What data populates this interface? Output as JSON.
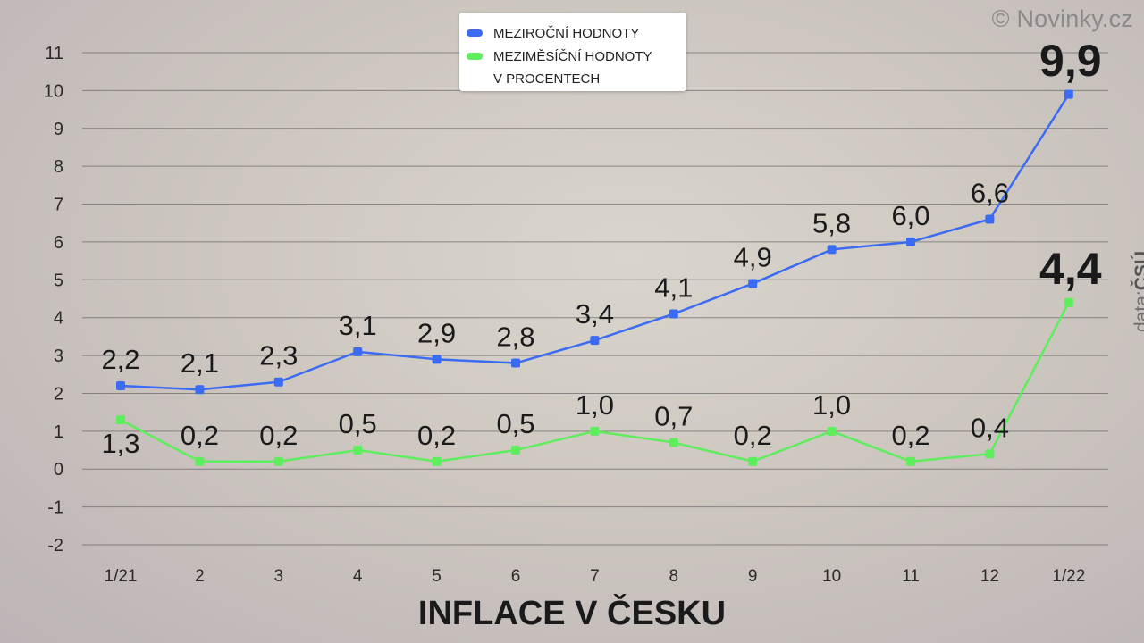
{
  "brand": "© Novinky.cz",
  "source": {
    "prefix": "data:",
    "name": "ČSÚ"
  },
  "title": "INFLACE V ČESKU",
  "legend": {
    "line1": "MEZIROČNÍ HODNOTY",
    "line2": "MEZIMĚSÍČNÍ HODNOTY",
    "line3": "V PROCENTECH"
  },
  "colors": {
    "yoy": "#3a6bf2",
    "mom": "#5ded5d",
    "grid": "#555555",
    "text": "#1a1a1a"
  },
  "chart_data": {
    "type": "line",
    "categories": [
      "1/21",
      "2",
      "3",
      "4",
      "5",
      "6",
      "7",
      "8",
      "9",
      "10",
      "11",
      "12",
      "1/22"
    ],
    "ylim": [
      -2,
      11
    ],
    "yticks": [
      -2,
      -1,
      0,
      1,
      2,
      3,
      4,
      5,
      6,
      7,
      8,
      9,
      10,
      11
    ],
    "grid": true,
    "legend_position": "top-center",
    "series": [
      {
        "name": "MEZIROČNÍ HODNOTY",
        "values": [
          2.2,
          2.1,
          2.3,
          3.1,
          2.9,
          2.8,
          3.4,
          4.1,
          4.9,
          5.8,
          6.0,
          6.6,
          9.9
        ],
        "labels": [
          "2,2",
          "2,1",
          "2,3",
          "3,1",
          "2,9",
          "2,8",
          "3,4",
          "4,1",
          "4,9",
          "5,8",
          "6,0",
          "6,6",
          "9,9"
        ]
      },
      {
        "name": "MEZIMĚSÍČNÍ HODNOTY",
        "values": [
          1.3,
          0.2,
          0.2,
          0.5,
          0.2,
          0.5,
          1.0,
          0.7,
          0.2,
          1.0,
          0.2,
          0.4,
          4.4
        ],
        "labels": [
          "1,3",
          "0,2",
          "0,2",
          "0,5",
          "0,2",
          "0,5",
          "1,0",
          "0,7",
          "0,2",
          "1,0",
          "0,2",
          "0,4",
          "4,4"
        ]
      }
    ]
  }
}
